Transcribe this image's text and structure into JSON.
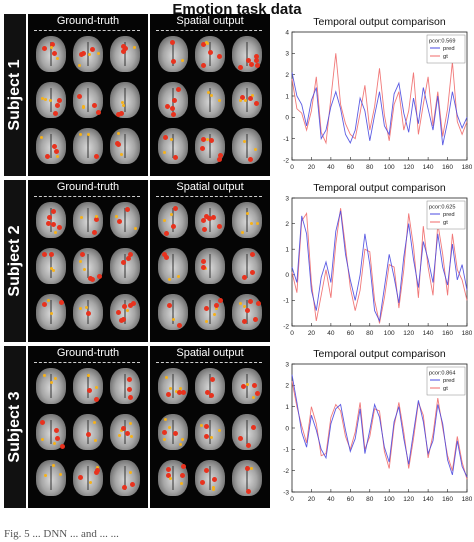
{
  "figure": {
    "title": "Emotion task data",
    "panels": {
      "ground_truth_label": "Ground-truth",
      "spatial_output_label": "Spatial output"
    },
    "subjects": [
      {
        "label": "Subject 1",
        "chart_title": "Temporal output comparison",
        "legend_stat": "pcor:0.569",
        "legend_pred": "pred",
        "legend_gt": "gt"
      },
      {
        "label": "Subject 2",
        "chart_title": "Temporal output comparison",
        "legend_stat": "pcor:0.625",
        "legend_pred": "pred",
        "legend_gt": "gt"
      },
      {
        "label": "Subject 3",
        "chart_title": "Temporal output comparison",
        "legend_stat": "pcor:0.864",
        "legend_pred": "pred",
        "legend_gt": "gt"
      }
    ],
    "caption_fragment": "Fig. 5 ... DNN ... and ... ..."
  },
  "colors": {
    "pred": "#4a4ae0",
    "gt": "#f06a6a",
    "activation": "#e8321e",
    "activation_hot": "#f6b21a"
  },
  "chart_data": [
    {
      "type": "line",
      "title": "Temporal output comparison",
      "xlim": [
        0,
        180
      ],
      "ylim": [
        -2,
        4
      ],
      "xticks": [
        0,
        20,
        40,
        60,
        80,
        100,
        120,
        140,
        160,
        180
      ],
      "yticks": [
        -2,
        -1,
        0,
        1,
        2,
        3,
        4
      ],
      "legend_position": "top-right",
      "series": [
        {
          "name": "pred",
          "x": [
            0,
            5,
            10,
            15,
            20,
            25,
            30,
            35,
            40,
            45,
            50,
            55,
            60,
            65,
            70,
            75,
            80,
            85,
            90,
            95,
            100,
            105,
            110,
            115,
            120,
            125,
            130,
            135,
            140,
            145,
            150,
            155,
            160,
            165,
            170,
            175,
            180
          ],
          "values": [
            2.1,
            1.0,
            0.6,
            -0.4,
            0.8,
            1.4,
            -1.0,
            -0.6,
            0.5,
            1.2,
            0.4,
            -0.8,
            -1.2,
            -0.6,
            0.9,
            0.3,
            -1.1,
            0.1,
            1.2,
            -0.4,
            -0.8,
            1.1,
            1.6,
            0.2,
            -0.7,
            0.9,
            -0.3,
            1.4,
            0.4,
            -0.6,
            1.0,
            -1.3,
            -0.2,
            1.2,
            0.1,
            -0.5,
            0.0
          ]
        },
        {
          "name": "gt",
          "x": [
            0,
            5,
            10,
            15,
            20,
            25,
            30,
            35,
            40,
            45,
            50,
            55,
            60,
            65,
            70,
            75,
            80,
            85,
            90,
            95,
            100,
            105,
            110,
            115,
            120,
            125,
            130,
            135,
            140,
            145,
            150,
            155,
            160,
            165,
            170,
            175,
            180
          ],
          "values": [
            1.8,
            0.4,
            0.2,
            -0.6,
            0.3,
            1.9,
            -0.7,
            -1.2,
            0.9,
            3.0,
            0.6,
            -0.3,
            -0.8,
            -1.0,
            0.2,
            1.5,
            -0.6,
            0.5,
            2.3,
            0.1,
            -1.1,
            0.6,
            1.2,
            -0.6,
            0.3,
            2.1,
            -0.8,
            0.6,
            1.9,
            -0.4,
            1.2,
            -0.9,
            0.4,
            2.6,
            -0.2,
            -0.8,
            -0.2
          ]
        }
      ]
    },
    {
      "type": "line",
      "title": "Temporal output comparison",
      "xlim": [
        0,
        180
      ],
      "ylim": [
        -2,
        3
      ],
      "xticks": [
        0,
        20,
        40,
        60,
        80,
        100,
        120,
        140,
        160,
        180
      ],
      "yticks": [
        -2,
        -1,
        0,
        1,
        2,
        3
      ],
      "legend_position": "top-right",
      "series": [
        {
          "name": "pred",
          "x": [
            0,
            5,
            10,
            15,
            20,
            25,
            30,
            35,
            40,
            45,
            50,
            55,
            60,
            65,
            70,
            75,
            80,
            85,
            90,
            95,
            100,
            105,
            110,
            115,
            120,
            125,
            130,
            135,
            140,
            145,
            150,
            155,
            160,
            165,
            170,
            175,
            180
          ],
          "values": [
            0.3,
            -0.3,
            2.3,
            1.6,
            -0.6,
            -1.4,
            -0.1,
            0.5,
            -0.3,
            1.7,
            2.5,
            0.8,
            -0.2,
            -1.0,
            0.0,
            1.6,
            0.4,
            -1.4,
            -1.8,
            -0.5,
            0.8,
            -0.1,
            -1.1,
            0.7,
            2.0,
            0.6,
            -0.5,
            1.3,
            0.6,
            -0.3,
            1.6,
            0.3,
            -0.4,
            1.2,
            -0.2,
            0.4,
            -0.6
          ]
        },
        {
          "name": "gt",
          "x": [
            0,
            5,
            10,
            15,
            20,
            25,
            30,
            35,
            40,
            45,
            50,
            55,
            60,
            65,
            70,
            75,
            80,
            85,
            90,
            95,
            100,
            105,
            110,
            115,
            120,
            125,
            130,
            135,
            140,
            145,
            150,
            155,
            160,
            165,
            170,
            175,
            180
          ],
          "values": [
            0.1,
            -0.7,
            2.1,
            2.4,
            -0.3,
            -1.8,
            -0.8,
            0.2,
            -0.9,
            1.2,
            2.6,
            1.1,
            -0.5,
            -1.4,
            -0.6,
            1.0,
            0.9,
            -1.0,
            -1.9,
            -0.9,
            0.4,
            0.3,
            -1.3,
            0.2,
            2.4,
            1.1,
            -0.9,
            1.9,
            0.3,
            -0.8,
            2.0,
            0.8,
            -0.8,
            1.6,
            0.2,
            -0.2,
            -1.0
          ]
        }
      ]
    },
    {
      "type": "line",
      "title": "Temporal output comparison",
      "xlim": [
        0,
        180
      ],
      "ylim": [
        -3,
        3
      ],
      "xticks": [
        0,
        20,
        40,
        60,
        80,
        100,
        120,
        140,
        160,
        180
      ],
      "yticks": [
        -3,
        -2,
        -1,
        0,
        1,
        2,
        3
      ],
      "legend_position": "top-right",
      "series": [
        {
          "name": "pred",
          "x": [
            0,
            5,
            10,
            15,
            20,
            25,
            30,
            35,
            40,
            45,
            50,
            55,
            60,
            65,
            70,
            75,
            80,
            85,
            90,
            95,
            100,
            105,
            110,
            115,
            120,
            125,
            130,
            135,
            140,
            145,
            150,
            155,
            160,
            165,
            170,
            175,
            180
          ],
          "values": [
            2.5,
            1.2,
            -0.2,
            -0.9,
            0.6,
            -0.1,
            -1.0,
            -1.4,
            0.2,
            0.9,
            1.1,
            -0.1,
            -1.1,
            -0.5,
            0.9,
            -1.2,
            -0.1,
            1.1,
            0.5,
            -0.9,
            -1.6,
            0.3,
            1.0,
            -0.5,
            -1.7,
            -0.2,
            1.3,
            0.3,
            -1.2,
            -0.6,
            1.1,
            0.2,
            -1.5,
            -2.2,
            -0.6,
            -1.8,
            -2.3
          ]
        },
        {
          "name": "gt",
          "x": [
            0,
            5,
            10,
            15,
            20,
            25,
            30,
            35,
            40,
            45,
            50,
            55,
            60,
            65,
            70,
            75,
            80,
            85,
            90,
            95,
            100,
            105,
            110,
            115,
            120,
            125,
            130,
            135,
            140,
            145,
            150,
            155,
            160,
            165,
            170,
            175,
            180
          ],
          "values": [
            2.2,
            1.0,
            0.1,
            -0.7,
            1.0,
            0.2,
            -1.3,
            -1.2,
            0.5,
            1.1,
            0.8,
            -0.4,
            -1.0,
            -0.2,
            1.2,
            -1.0,
            -0.4,
            0.9,
            0.8,
            -1.1,
            -1.9,
            0.1,
            1.2,
            -0.2,
            -1.9,
            -0.5,
            1.2,
            0.6,
            -1.4,
            -0.3,
            1.4,
            0.0,
            -1.3,
            -2.0,
            -0.4,
            -1.6,
            -2.4
          ]
        }
      ]
    }
  ]
}
